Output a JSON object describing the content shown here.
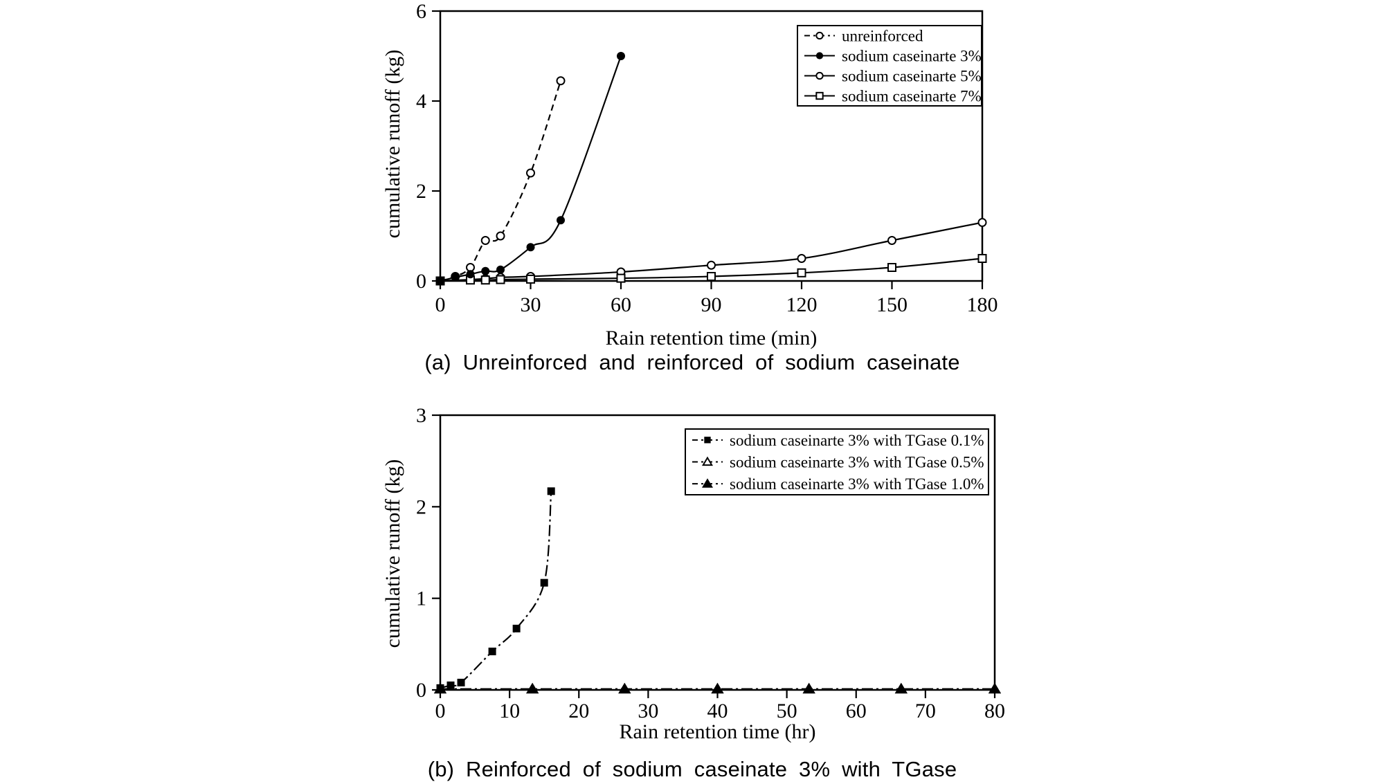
{
  "page": {
    "background": "#ffffff",
    "ink": "#000000"
  },
  "chart_data": [
    {
      "id": "a",
      "type": "line",
      "caption": "(a) Unreinforced and reinforced of sodium caseinate",
      "xlabel": "Rain retention time (min)",
      "ylabel": "cumulative runoff (kg)",
      "xlim": [
        0,
        180
      ],
      "ylim": [
        0,
        6
      ],
      "xticks": [
        0,
        30,
        60,
        90,
        120,
        150,
        180
      ],
      "yticks": [
        0,
        2,
        4,
        6
      ],
      "grid": false,
      "legend_position": "top-right",
      "series": [
        {
          "label": "unreinforced",
          "marker": "circle-open",
          "line_style": "dashed",
          "points": [
            [
              0,
              0
            ],
            [
              5,
              0.1
            ],
            [
              10,
              0.3
            ],
            [
              15,
              0.9
            ],
            [
              20,
              1.0
            ],
            [
              30,
              2.4
            ],
            [
              40,
              4.45
            ]
          ]
        },
        {
          "label": "sodium caseinarte 3%",
          "marker": "circle-filled",
          "line_style": "solid",
          "points": [
            [
              0,
              0
            ],
            [
              5,
              0.08
            ],
            [
              10,
              0.15
            ],
            [
              15,
              0.22
            ],
            [
              20,
              0.25
            ],
            [
              30,
              0.75
            ],
            [
              40,
              1.35
            ],
            [
              60,
              5.0
            ]
          ]
        },
        {
          "label": "sodium caseinarte 5%",
          "marker": "circle-open",
          "line_style": "solid",
          "points": [
            [
              0,
              0
            ],
            [
              10,
              0.03
            ],
            [
              15,
              0.05
            ],
            [
              20,
              0.08
            ],
            [
              30,
              0.1
            ],
            [
              60,
              0.2
            ],
            [
              90,
              0.35
            ],
            [
              120,
              0.5
            ],
            [
              150,
              0.9
            ],
            [
              180,
              1.3
            ]
          ]
        },
        {
          "label": "sodium caseinarte 7%",
          "marker": "square-open",
          "line_style": "solid",
          "points": [
            [
              0,
              0
            ],
            [
              10,
              0.02
            ],
            [
              15,
              0.02
            ],
            [
              20,
              0.03
            ],
            [
              30,
              0.04
            ],
            [
              60,
              0.06
            ],
            [
              90,
              0.1
            ],
            [
              120,
              0.18
            ],
            [
              150,
              0.3
            ],
            [
              180,
              0.5
            ]
          ]
        }
      ]
    },
    {
      "id": "b",
      "type": "line",
      "caption": "(b) Reinforced of sodium caseinate 3% with TGase",
      "xlabel": "Rain retention time (hr)",
      "ylabel": "cumulative runoff (kg)",
      "xlim": [
        0,
        80
      ],
      "ylim": [
        0,
        3
      ],
      "xticks": [
        0,
        10,
        20,
        30,
        40,
        50,
        60,
        70,
        80
      ],
      "yticks": [
        0,
        1,
        2,
        3
      ],
      "grid": false,
      "legend_position": "top-right",
      "series": [
        {
          "label": "sodium caseinarte 3% with TGase 0.1%",
          "marker": "square-filled",
          "line_style": "dashdot",
          "points": [
            [
              0,
              0.02
            ],
            [
              1.5,
              0.05
            ],
            [
              3,
              0.08
            ],
            [
              7.5,
              0.42
            ],
            [
              11,
              0.67
            ],
            [
              15,
              1.17
            ],
            [
              16,
              2.17
            ]
          ]
        },
        {
          "label": "sodium caseinarte 3% with TGase 0.5%",
          "marker": "triangle-open",
          "line_style": "dashdot",
          "points": [
            [
              0,
              0.01
            ],
            [
              13.3,
              0.01
            ],
            [
              26.6,
              0.01
            ],
            [
              40,
              0.01
            ],
            [
              53.2,
              0.01
            ],
            [
              66.5,
              0.01
            ],
            [
              80,
              0.01
            ]
          ]
        },
        {
          "label": "sodium caseinarte 3% with TGase 1.0%",
          "marker": "triangle-filled",
          "line_style": "dashdot",
          "points": [
            [
              0,
              0.01
            ],
            [
              13.3,
              0.01
            ],
            [
              26.6,
              0.01
            ],
            [
              40,
              0.01
            ],
            [
              53.2,
              0.01
            ],
            [
              66.5,
              0.01
            ],
            [
              80,
              0.01
            ]
          ]
        }
      ]
    }
  ]
}
